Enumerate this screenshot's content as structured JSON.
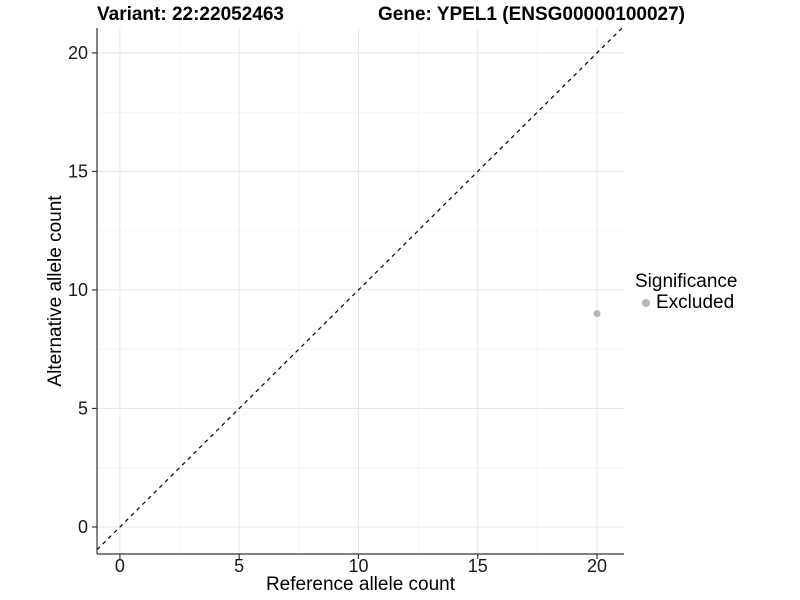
{
  "titles": {
    "left": "Variant: 22:22052463",
    "right": "Gene: YPEL1 (ENSG00000100027)"
  },
  "chart_data": {
    "type": "scatter",
    "title_left": "Variant: 22:22052463",
    "title_right": "Gene: YPEL1 (ENSG00000100027)",
    "xlabel": "Reference allele count",
    "ylabel": "Alternative allele count",
    "xlim": [
      -0.96,
      21.13
    ],
    "ylim": [
      -1.14,
      21.05
    ],
    "xticks": [
      0,
      5,
      10,
      15,
      20
    ],
    "yticks": [
      0,
      5,
      10,
      15,
      20
    ],
    "xticks_minor": [
      2.5,
      7.5,
      12.5,
      17.5
    ],
    "yticks_minor": [
      2.5,
      7.5,
      12.5,
      17.5
    ],
    "grid": true,
    "series": [
      {
        "name": "Excluded",
        "color": "#b8b8b8",
        "points": [
          {
            "x": 20,
            "y": 9
          }
        ]
      }
    ],
    "reference_line": {
      "type": "identity",
      "style": "dashed",
      "color": "#000000"
    },
    "legend": {
      "position": "right",
      "title": "Significance",
      "items": [
        {
          "label": "Excluded",
          "color": "#b8b8b8",
          "marker": "circle"
        }
      ]
    },
    "style": {
      "background": "#ffffff",
      "grid_major_color": "#e7e7e7",
      "grid_minor_color": "#f4f4f4",
      "axis_color": "#333333",
      "tick_label_color": "#1a1a1a",
      "point_radius": 3.5
    }
  }
}
